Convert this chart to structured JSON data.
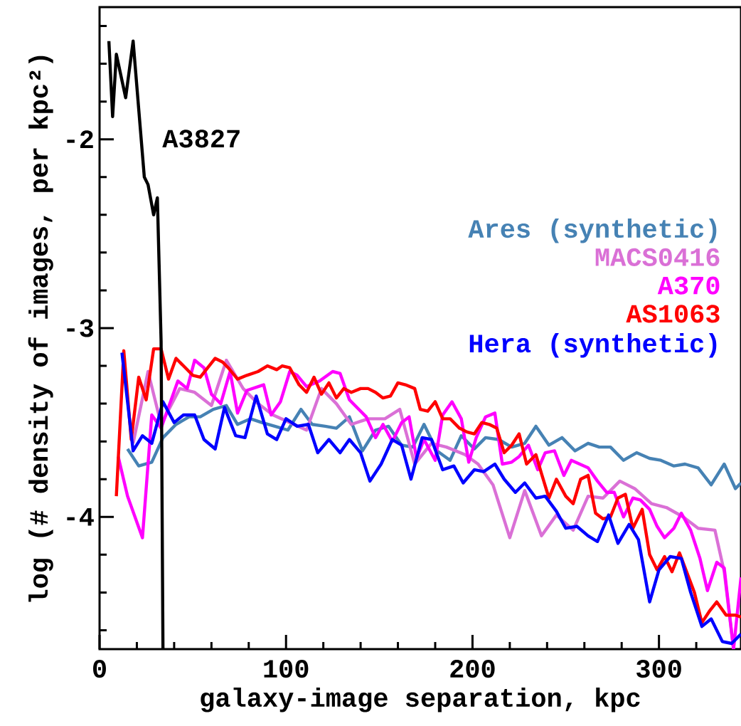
{
  "chart_data": {
    "type": "line",
    "xlabel": "galaxy-image separation, kpc",
    "ylabel": "log (# density of images, per kpc²)",
    "xlim": [
      0,
      344
    ],
    "ylim": [
      -4.7,
      -1.3
    ],
    "xticks": [
      0,
      {
        "value": 20,
        "label": null
      },
      {
        "value": 40,
        "label": null
      },
      {
        "value": 60,
        "label": null
      },
      {
        "value": 80,
        "label": null
      },
      100,
      {
        "value": 120,
        "label": null
      },
      {
        "value": 140,
        "label": null
      },
      {
        "value": 160,
        "label": null
      },
      {
        "value": 180,
        "label": null
      },
      200,
      {
        "value": 220,
        "label": null
      },
      {
        "value": 240,
        "label": null
      },
      {
        "value": 260,
        "label": null
      },
      {
        "value": 280,
        "label": null
      },
      300,
      {
        "value": 320,
        "label": null
      },
      {
        "value": 340,
        "label": null
      }
    ],
    "yticks": [
      {
        "value": -4.6,
        "label": null
      },
      {
        "value": -4.4,
        "label": null
      },
      {
        "value": -4.2,
        "label": null
      },
      -4,
      {
        "value": -3.8,
        "label": null
      },
      {
        "value": -3.6,
        "label": null
      },
      {
        "value": -3.4,
        "label": null
      },
      {
        "value": -3.2,
        "label": null
      },
      -3,
      {
        "value": -2.8,
        "label": null
      },
      {
        "value": -2.6,
        "label": null
      },
      {
        "value": -2.4,
        "label": null
      },
      {
        "value": -2.2,
        "label": null
      },
      -2,
      {
        "value": -1.8,
        "label": null
      },
      {
        "value": -1.6,
        "label": null
      },
      {
        "value": -1.4,
        "label": null
      }
    ],
    "legend": "right",
    "annotations": [
      "A3827"
    ],
    "series": [
      {
        "name": "Ares (synthetic)",
        "color": "#4682b4",
        "x": [
          15,
          21,
          28,
          34,
          41,
          48,
          54,
          61,
          68,
          74,
          81,
          87,
          94,
          101,
          108,
          114,
          121,
          127,
          134,
          141,
          148,
          155,
          162,
          168,
          174,
          181,
          188,
          194,
          201,
          207,
          214,
          221,
          228,
          234,
          241,
          248,
          255,
          262,
          268,
          274,
          281,
          288,
          295,
          301,
          308,
          314,
          321,
          328,
          335,
          341,
          344
        ],
        "values": [
          -3.64,
          -3.73,
          -3.71,
          -3.58,
          -3.51,
          -3.47,
          -3.47,
          -3.43,
          -3.41,
          -3.51,
          -3.48,
          -3.5,
          -3.52,
          -3.54,
          -3.43,
          -3.51,
          -3.52,
          -3.53,
          -3.47,
          -3.65,
          -3.54,
          -3.52,
          -3.62,
          -3.63,
          -3.51,
          -3.65,
          -3.7,
          -3.57,
          -3.64,
          -3.58,
          -3.59,
          -3.63,
          -3.61,
          -3.52,
          -3.62,
          -3.58,
          -3.65,
          -3.61,
          -3.63,
          -3.63,
          -3.7,
          -3.66,
          -3.69,
          -3.7,
          -3.73,
          -3.72,
          -3.74,
          -3.83,
          -3.72,
          -3.85,
          -3.82
        ]
      },
      {
        "name": "MACS0416",
        "color": "#da70d6",
        "x": [
          18,
          26,
          33,
          43,
          51,
          60,
          68,
          77,
          85,
          93,
          102,
          111,
          119,
          127,
          135,
          144,
          153,
          161,
          169,
          178,
          186,
          196,
          203,
          211,
          220,
          228,
          237,
          245,
          254,
          262,
          270,
          279,
          287,
          296,
          304,
          313,
          321,
          330,
          335,
          340
        ],
        "values": [
          -3.61,
          -3.23,
          -3.51,
          -3.32,
          -3.34,
          -3.41,
          -3.17,
          -3.32,
          -3.4,
          -3.46,
          -3.5,
          -3.54,
          -3.32,
          -3.4,
          -3.51,
          -3.48,
          -3.48,
          -3.43,
          -3.72,
          -3.61,
          -3.63,
          -3.67,
          -3.72,
          -3.83,
          -4.11,
          -3.86,
          -4.1,
          -3.99,
          -4.07,
          -3.89,
          -3.9,
          -3.81,
          -3.85,
          -3.93,
          -3.95,
          -4.0,
          -4.06,
          -4.07,
          -4.29,
          -4.7
        ]
      },
      {
        "name": "A370",
        "color": "#ff00ff",
        "x": [
          10,
          15,
          23,
          28,
          33,
          42,
          47,
          51,
          56,
          60,
          65,
          70,
          74,
          79,
          88,
          92,
          97,
          102,
          106,
          111,
          118,
          125,
          129,
          134,
          143,
          148,
          152,
          157,
          162,
          166,
          170,
          174,
          180,
          184,
          189,
          194,
          198,
          202,
          207,
          212,
          216,
          221,
          225,
          230,
          235,
          239,
          244,
          249,
          253,
          262,
          267,
          272,
          276,
          281,
          286,
          290,
          295,
          299,
          303,
          308,
          312,
          317,
          322,
          326,
          331,
          335,
          340,
          344
        ],
        "values": [
          -3.68,
          -3.89,
          -4.11,
          -3.46,
          -3.53,
          -3.28,
          -3.32,
          -3.17,
          -3.21,
          -3.35,
          -3.4,
          -3.23,
          -3.45,
          -3.33,
          -3.3,
          -3.46,
          -3.39,
          -3.23,
          -3.25,
          -3.31,
          -3.28,
          -3.23,
          -3.24,
          -3.38,
          -3.47,
          -3.58,
          -3.51,
          -3.6,
          -3.5,
          -3.47,
          -3.69,
          -3.59,
          -3.7,
          -3.46,
          -3.39,
          -3.48,
          -3.71,
          -3.58,
          -3.47,
          -3.45,
          -3.72,
          -3.71,
          -3.68,
          -3.62,
          -3.75,
          -3.66,
          -3.65,
          -3.78,
          -3.7,
          -3.74,
          -3.81,
          -3.87,
          -3.87,
          -4.0,
          -3.9,
          -3.91,
          -3.96,
          -4.05,
          -4.11,
          -4.06,
          -3.98,
          -4.07,
          -4.22,
          -4.39,
          -4.24,
          -4.27,
          -4.7,
          -4.32
        ]
      },
      {
        "name": "AS1063",
        "color": "#ff0000",
        "x": [
          9,
          13,
          17,
          21,
          25,
          29,
          33,
          37,
          41,
          45,
          50,
          54,
          58,
          62,
          66,
          69,
          74,
          79,
          85,
          90,
          95,
          98,
          102,
          107,
          111,
          115,
          119,
          123,
          127,
          131,
          135,
          140,
          144,
          148,
          152,
          156,
          160,
          164,
          169,
          172,
          176,
          180,
          184,
          188,
          193,
          197,
          201,
          205,
          209,
          213,
          217,
          221,
          225,
          229,
          234,
          237,
          241,
          245,
          250,
          254,
          258,
          262,
          266,
          270,
          274,
          278,
          282,
          286,
          291,
          295,
          299,
          303,
          307,
          311,
          319,
          323,
          327,
          331,
          336,
          341,
          344
        ],
        "values": [
          -3.89,
          -3.12,
          -3.59,
          -3.26,
          -3.38,
          -3.11,
          -3.11,
          -3.27,
          -3.16,
          -3.2,
          -3.25,
          -3.26,
          -3.21,
          -3.16,
          -3.18,
          -3.21,
          -3.27,
          -3.25,
          -3.23,
          -3.2,
          -3.22,
          -3.2,
          -3.21,
          -3.3,
          -3.34,
          -3.26,
          -3.35,
          -3.29,
          -3.37,
          -3.32,
          -3.34,
          -3.32,
          -3.32,
          -3.34,
          -3.37,
          -3.36,
          -3.29,
          -3.3,
          -3.32,
          -3.43,
          -3.44,
          -3.39,
          -3.48,
          -3.48,
          -3.53,
          -3.55,
          -3.56,
          -3.5,
          -3.51,
          -3.53,
          -3.66,
          -3.62,
          -3.56,
          -3.72,
          -3.67,
          -3.77,
          -3.9,
          -3.8,
          -3.89,
          -3.93,
          -3.8,
          -3.78,
          -3.98,
          -4.01,
          -4.0,
          -3.9,
          -3.88,
          -4.06,
          -3.96,
          -4.2,
          -4.28,
          -4.21,
          -4.29,
          -4.19,
          -4.4,
          -4.56,
          -4.5,
          -4.45,
          -4.52,
          -4.52,
          -4.53
        ]
      },
      {
        "name": "Hera (synthetic)",
        "color": "#0000ff",
        "x": [
          12,
          18,
          23,
          28,
          34,
          40,
          45,
          51,
          56,
          62,
          67,
          73,
          78,
          84,
          90,
          95,
          100,
          106,
          112,
          117,
          123,
          129,
          134,
          140,
          145,
          151,
          157,
          162,
          167,
          173,
          178,
          184,
          190,
          195,
          201,
          206,
          212,
          217,
          223,
          228,
          234,
          239,
          245,
          250,
          256,
          262,
          267,
          273,
          278,
          284,
          289,
          295,
          300,
          306,
          312,
          317,
          323,
          328,
          334,
          339,
          344
        ],
        "values": [
          -3.13,
          -3.65,
          -3.57,
          -3.61,
          -3.39,
          -3.5,
          -3.46,
          -3.46,
          -3.59,
          -3.64,
          -3.42,
          -3.57,
          -3.58,
          -3.36,
          -3.56,
          -3.59,
          -3.48,
          -3.52,
          -3.51,
          -3.66,
          -3.59,
          -3.66,
          -3.59,
          -3.66,
          -3.81,
          -3.72,
          -3.59,
          -3.62,
          -3.8,
          -3.58,
          -3.59,
          -3.75,
          -3.73,
          -3.82,
          -3.75,
          -3.76,
          -3.72,
          -3.8,
          -3.87,
          -3.82,
          -3.9,
          -3.89,
          -3.97,
          -4.06,
          -4.05,
          -4.1,
          -4.13,
          -3.99,
          -4.14,
          -4.04,
          -4.12,
          -4.45,
          -4.28,
          -4.21,
          -4.22,
          -4.4,
          -4.58,
          -4.54,
          -4.66,
          -4.67,
          -4.62
        ]
      },
      {
        "color": "#000000",
        "x": [
          5,
          7,
          9,
          14,
          18,
          24,
          26,
          29,
          31,
          33,
          34
        ],
        "values": [
          -1.48,
          -1.88,
          -1.55,
          -1.78,
          -1.48,
          -2.2,
          -2.24,
          -2.4,
          -2.31,
          -3.07,
          -4.7
        ]
      }
    ]
  }
}
